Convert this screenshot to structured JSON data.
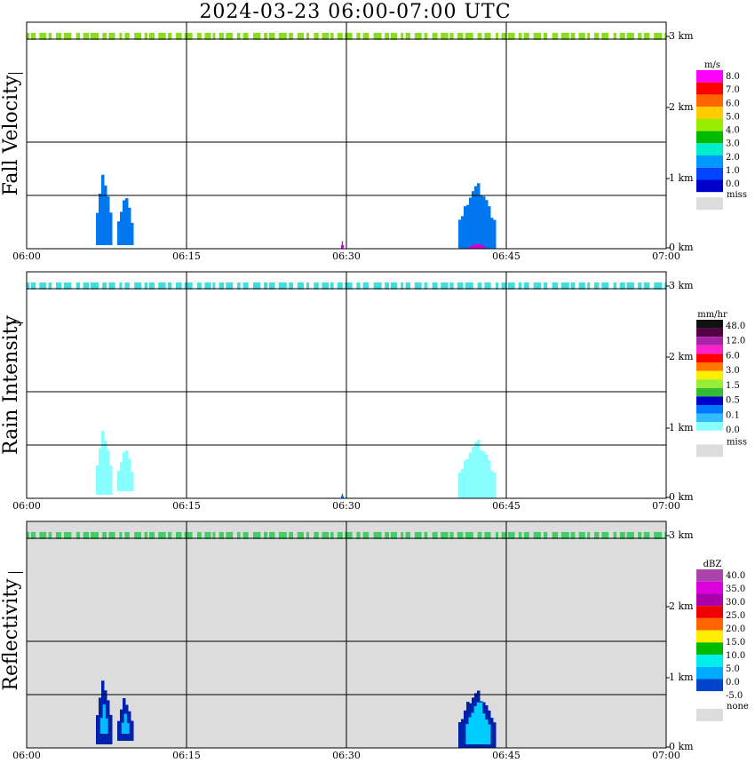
{
  "title": "2024-03-23  06:00-07:00 UTC",
  "chart_data": [
    {
      "type": "heatmap",
      "ylabel": "Fall Velocity",
      "x_ticks": [
        "06:00",
        "06:15",
        "06:30",
        "06:45",
        "07:00"
      ],
      "y_ticks": [
        "0 km",
        "1 km",
        "2 km",
        "3 km"
      ],
      "xlim_minutes": [
        0,
        60
      ],
      "ylim_km": [
        0,
        3.2
      ],
      "grid": true,
      "background": "#ffffff",
      "colorbar": {
        "unit": "m/s",
        "labels": [
          "8.0",
          "7.0",
          "6.0",
          "5.0",
          "4.0",
          "3.0",
          "2.0",
          "1.0",
          "0.0"
        ],
        "colors": [
          "#ff00ff",
          "#ff0000",
          "#ff6600",
          "#ffcc00",
          "#99ee00",
          "#00bb00",
          "#00eecc",
          "#0099ff",
          "#0044ff",
          "#0000cc"
        ],
        "missing_label": "miss",
        "missing_color": "#dcdcdc"
      },
      "layers": [
        {
          "name": "3 km band",
          "t0": 0.0,
          "t1": 60.0,
          "z0": 2.95,
          "z1": 3.05,
          "color": "#88dd22",
          "gaps": true
        },
        {
          "name": "echo 1",
          "t0": 6.5,
          "t1": 8.0,
          "z0": 0.05,
          "z1": 1.1,
          "color": "#0077ee"
        },
        {
          "name": "echo 1b",
          "t0": 8.5,
          "t1": 10.0,
          "z0": 0.05,
          "z1": 0.8,
          "color": "#0077ee"
        },
        {
          "name": "echo 2",
          "t0": 40.5,
          "t1": 44.0,
          "z0": 0.0,
          "z1": 0.95,
          "color": "#0077ee"
        },
        {
          "name": "echo 2 surface",
          "t0": 41.5,
          "t1": 43.0,
          "z0": 0.0,
          "z1": 0.08,
          "color": "#cc00cc"
        },
        {
          "name": "spike",
          "t0": 29.5,
          "t1": 29.7,
          "z0": 0.0,
          "z1": 0.12,
          "color": "#cc00cc"
        }
      ]
    },
    {
      "type": "heatmap",
      "ylabel": "Rain Intensity",
      "x_ticks": [
        "06:00",
        "06:15",
        "06:30",
        "06:45",
        "07:00"
      ],
      "y_ticks": [
        "0 km",
        "1 km",
        "2 km",
        "3 km"
      ],
      "xlim_minutes": [
        0,
        60
      ],
      "ylim_km": [
        0,
        3.2
      ],
      "grid": true,
      "background": "#ffffff",
      "colorbar": {
        "unit": "mm/hr",
        "labels": [
          "48.0",
          "12.0",
          "6.0",
          "3.0",
          "1.5",
          "0.5",
          "0.1",
          "0.0"
        ],
        "colors": [
          "#111111",
          "#550044",
          "#aa22aa",
          "#ff22cc",
          "#ff0000",
          "#ff7700",
          "#ffee00",
          "#99ee33",
          "#33bb33",
          "#0000cc",
          "#0077ff",
          "#33bbff",
          "#88ffff",
          "#ffffff"
        ],
        "missing_label": "miss",
        "missing_color": "#dcdcdc"
      },
      "layers": [
        {
          "name": "3 km band",
          "t0": 0.0,
          "t1": 60.0,
          "z0": 2.95,
          "z1": 3.05,
          "color": "#44dddd",
          "gaps": true
        },
        {
          "name": "echo 1",
          "t0": 6.5,
          "t1": 8.0,
          "z0": 0.05,
          "z1": 1.0,
          "color": "#88ffff"
        },
        {
          "name": "echo 1b",
          "t0": 8.5,
          "t1": 10.0,
          "z0": 0.1,
          "z1": 0.75,
          "color": "#88ffff"
        },
        {
          "name": "echo 2",
          "t0": 40.5,
          "t1": 44.0,
          "z0": 0.0,
          "z1": 0.85,
          "color": "#88ffff"
        },
        {
          "name": "spike",
          "t0": 29.5,
          "t1": 29.7,
          "z0": 0.0,
          "z1": 0.08,
          "color": "#0077ff"
        }
      ]
    },
    {
      "type": "heatmap",
      "ylabel": "Reflectivity",
      "x_ticks": [
        "06:00",
        "06:15",
        "06:30",
        "06:45",
        "07:00"
      ],
      "y_ticks": [
        "0 km",
        "1 km",
        "2 km",
        "3 km"
      ],
      "xlim_minutes": [
        0,
        60
      ],
      "ylim_km": [
        0,
        3.2
      ],
      "grid": true,
      "background": "#dcdcdc",
      "colorbar": {
        "unit": "dBZ",
        "labels": [
          "40.0",
          "35.0",
          "30.0",
          "25.0",
          "20.0",
          "15.0",
          "10.0",
          "5.0",
          "0.0",
          "-5.0"
        ],
        "colors": [
          "#aa44aa",
          "#dd00dd",
          "#aa00aa",
          "#ee0000",
          "#ff6600",
          "#ffee00",
          "#00bb00",
          "#00eeee",
          "#00aaff",
          "#0044cc",
          "#ffffff"
        ],
        "missing_label": "none",
        "missing_color": "#dcdcdc"
      },
      "layers": [
        {
          "name": "3 km band",
          "t0": 0.0,
          "t1": 60.0,
          "z0": 2.95,
          "z1": 3.05,
          "color": "#44cc66",
          "gaps": true
        },
        {
          "name": "echo 1 edge",
          "t0": 6.5,
          "t1": 8.0,
          "z0": 0.05,
          "z1": 1.0,
          "color": "#0022aa"
        },
        {
          "name": "echo 1 core",
          "t0": 6.9,
          "t1": 7.6,
          "z0": 0.2,
          "z1": 0.7,
          "color": "#00bbff"
        },
        {
          "name": "echo 1b edge",
          "t0": 8.5,
          "t1": 10.0,
          "z0": 0.1,
          "z1": 0.75,
          "color": "#0022aa"
        },
        {
          "name": "echo 1b core",
          "t0": 8.9,
          "t1": 9.6,
          "z0": 0.2,
          "z1": 0.55,
          "color": "#00bbff"
        },
        {
          "name": "echo 2 edge",
          "t0": 40.5,
          "t1": 44.0,
          "z0": 0.0,
          "z1": 0.85,
          "color": "#0022aa"
        },
        {
          "name": "echo 2 core",
          "t0": 41.2,
          "t1": 43.5,
          "z0": 0.05,
          "z1": 0.7,
          "color": "#00ccff"
        }
      ]
    }
  ]
}
